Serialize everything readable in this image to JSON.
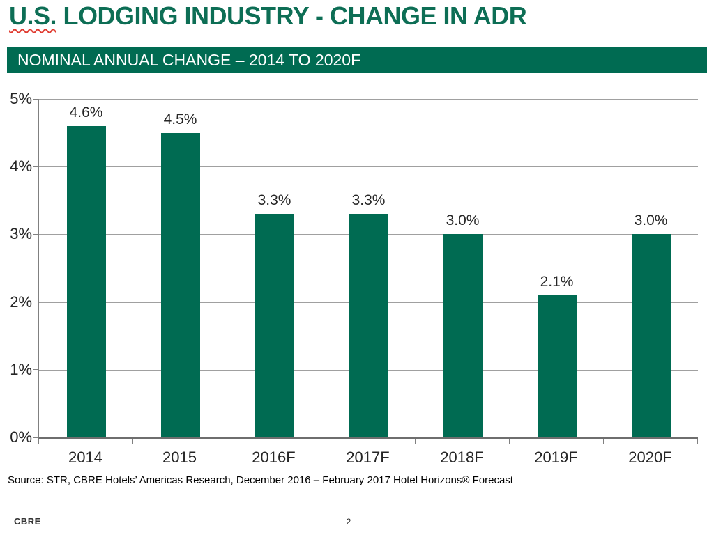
{
  "header": {
    "title_us": "U.S.",
    "title_rest": "LODGING INDUSTRY - CHANGE IN ADR",
    "subtitle": "NOMINAL ANNUAL CHANGE – 2014 TO 2020F"
  },
  "chart_data": {
    "type": "bar",
    "title": "U.S. LODGING INDUSTRY - CHANGE IN ADR",
    "subtitle": "NOMINAL ANNUAL CHANGE – 2014 TO 2020F",
    "categories": [
      "2014",
      "2015",
      "2016F",
      "2017F",
      "2018F",
      "2019F",
      "2020F"
    ],
    "values": [
      4.6,
      4.5,
      3.3,
      3.3,
      3.0,
      2.1,
      3.0
    ],
    "value_labels": [
      "4.6%",
      "4.5%",
      "3.3%",
      "3.3%",
      "3.0%",
      "2.1%",
      "3.0%"
    ],
    "xlabel": "",
    "ylabel": "",
    "ylim": [
      0,
      5
    ],
    "yticks": [
      0,
      1,
      2,
      3,
      4,
      5
    ],
    "ytick_labels": [
      "0%",
      "1%",
      "2%",
      "3%",
      "4%",
      "5%"
    ],
    "grid": true,
    "legend": "none",
    "bar_color": "#006B52"
  },
  "source": "Source: STR, CBRE Hotels’ Americas Research, December 2016 – February 2017 Hotel Horizons® Forecast",
  "footer": {
    "logo": "CBRE",
    "page_number": "2"
  },
  "colors": {
    "brand_green": "#006B52",
    "title_green": "#0D6E55",
    "squiggle_red": "#E03C31",
    "gridline_gray": "#A0A0A0",
    "axis_gray": "#808080",
    "text_dark": "#262626"
  }
}
